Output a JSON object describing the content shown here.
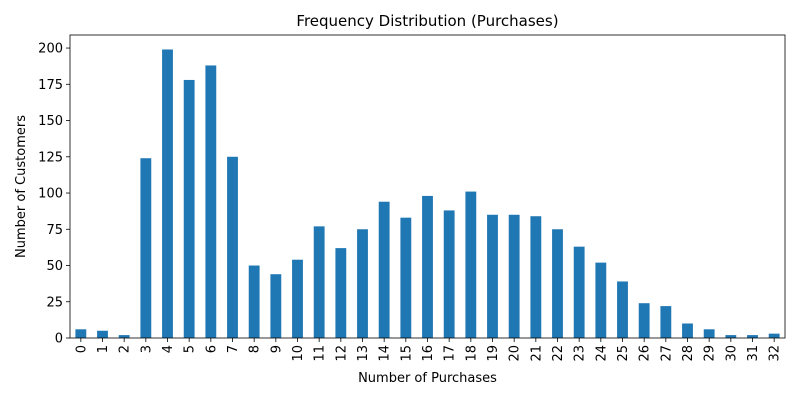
{
  "chart_data": {
    "type": "bar",
    "title": "Frequency Distribution (Purchases)",
    "xlabel": "Number of Purchases",
    "ylabel": "Number of Customers",
    "categories": [
      "0",
      "1",
      "2",
      "3",
      "4",
      "5",
      "6",
      "7",
      "8",
      "9",
      "10",
      "11",
      "12",
      "13",
      "14",
      "15",
      "16",
      "17",
      "18",
      "19",
      "20",
      "21",
      "22",
      "23",
      "24",
      "25",
      "26",
      "27",
      "28",
      "29",
      "30",
      "31",
      "32"
    ],
    "values": [
      6,
      5,
      2,
      124,
      199,
      178,
      188,
      125,
      50,
      44,
      54,
      77,
      62,
      75,
      94,
      83,
      98,
      88,
      101,
      85,
      85,
      84,
      75,
      63,
      52,
      39,
      24,
      22,
      10,
      6,
      2,
      2,
      3
    ],
    "yticks": [
      0,
      25,
      50,
      75,
      100,
      125,
      150,
      175,
      200
    ],
    "ylim": [
      0,
      209
    ],
    "grid": false,
    "bar_color": "#1f77b4"
  }
}
